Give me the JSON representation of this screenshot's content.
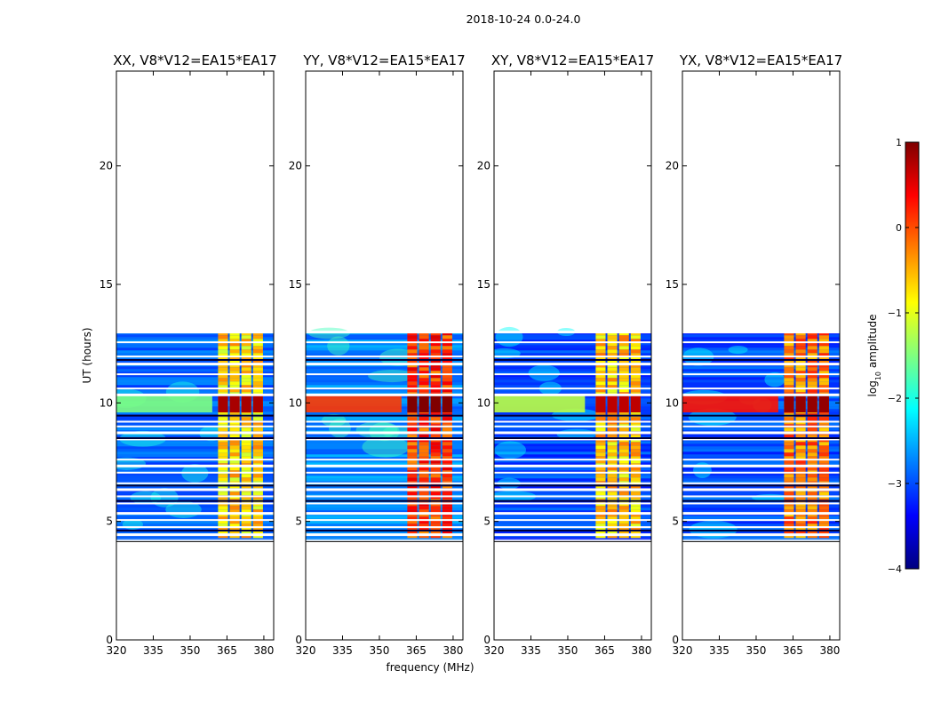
{
  "figure": {
    "suptitle": "2018-10-24 0.0-24.0",
    "xlabel": "frequency (MHz)",
    "ylabel": "UT (hours)"
  },
  "chart_data": {
    "type": "heatmap",
    "xlim": [
      320,
      384
    ],
    "ylim": [
      0,
      24
    ],
    "xticks": [
      320,
      335,
      350,
      365,
      380
    ],
    "yticks": [
      0,
      5,
      10,
      15,
      20
    ],
    "data_time_range_hours": [
      4.3,
      13.0
    ],
    "panels": [
      {
        "title": "XX, V8*V12=EA15*EA17",
        "pol": "XX",
        "band_peak": 0.8,
        "band_level": -0.7,
        "burst_level": -1.5,
        "burst_x_end": 359,
        "sky_level": -2.9
      },
      {
        "title": "YY, V8*V12=EA15*EA17",
        "pol": "YY",
        "band_peak": 1.0,
        "band_level": 0.1,
        "burst_level": 0.1,
        "burst_x_end": 359,
        "sky_level": -2.7
      },
      {
        "title": "XY, V8*V12=EA15*EA17",
        "pol": "XY",
        "band_peak": 0.7,
        "band_level": -0.6,
        "burst_level": -1.2,
        "burst_x_end": 357,
        "sky_level": -3.0
      },
      {
        "title": "YX, V8*V12=EA15*EA17",
        "pol": "YX",
        "band_peak": 0.9,
        "band_level": -0.2,
        "burst_level": 0.3,
        "burst_x_end": 359,
        "sky_level": -3.0
      }
    ],
    "rfi_band_mhz": [
      361,
      380
    ],
    "burst_hours": [
      9.6,
      10.3
    ],
    "flagged_rows_hours": [
      4.45,
      4.75,
      5.05,
      5.35,
      5.75,
      6.05,
      6.35,
      6.6,
      7.05,
      7.35,
      7.6,
      8.45,
      8.75,
      9.0,
      9.2,
      10.35,
      10.6,
      11.2,
      11.65,
      11.95,
      12.55,
      13.0
    ],
    "colorbar": {
      "label": "log10 amplitude",
      "label_prefix": "log",
      "label_sub": "10",
      "label_suffix": " amplitude",
      "range": [
        -4,
        1
      ],
      "ticks": [
        1,
        0,
        -1,
        -2,
        -3,
        -4
      ],
      "colormap": "jet"
    }
  }
}
